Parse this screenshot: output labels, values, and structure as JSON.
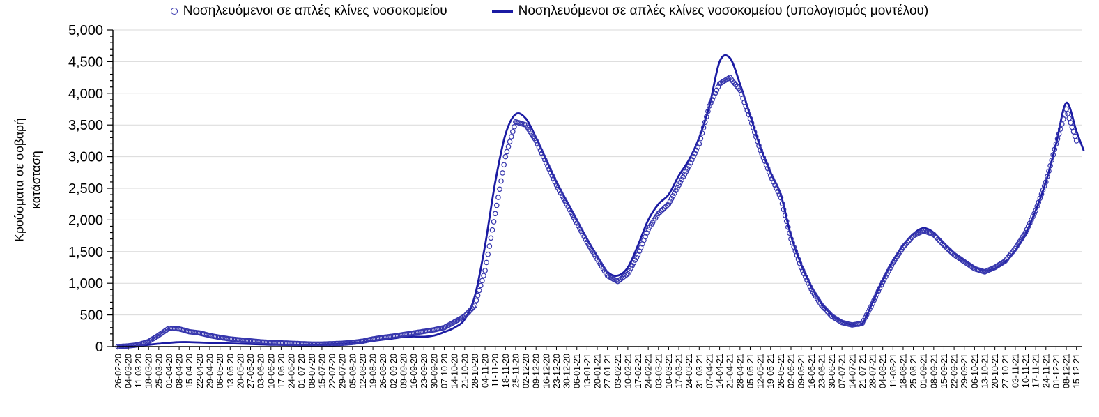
{
  "figure": {
    "colors": {
      "model_line": "#1B1BA3",
      "observed_marker": "#3636AD",
      "grid": "#D9D9D9",
      "axis": "#000000",
      "text": "#000000",
      "background": "#FFFFFF"
    },
    "y_axis": {
      "title": "Κρούσματα σε σοβαρή κατάσταση",
      "title_line1": "Κρούσματα σε σοβαρή",
      "title_line2": "κατάσταση",
      "min": 0,
      "max": 5000,
      "major_step": 500,
      "minor_step": 100,
      "tick_labels": [
        "0",
        "500",
        "1,000",
        "1,500",
        "2,000",
        "2,500",
        "3,000",
        "3,500",
        "4,000",
        "4,500",
        "5,000"
      ]
    }
  },
  "chart_data": {
    "type": "line+scatter",
    "title": "",
    "xlabel": "",
    "ylabel": "Κρούσματα σε σοβαρή κατάσταση",
    "ylim": [
      0,
      5000
    ],
    "grid": "horizontal",
    "legend_position": "top-center",
    "x": [
      "26-02-20",
      "04-03-20",
      "11-03-20",
      "18-03-20",
      "25-03-20",
      "01-04-20",
      "08-04-20",
      "15-04-20",
      "22-04-20",
      "29-04-20",
      "06-05-20",
      "13-05-20",
      "20-05-20",
      "27-05-20",
      "03-06-20",
      "10-06-20",
      "17-06-20",
      "24-06-20",
      "01-07-20",
      "08-07-20",
      "15-07-20",
      "22-07-20",
      "29-07-20",
      "05-08-20",
      "12-08-20",
      "19-08-20",
      "26-08-20",
      "02-09-20",
      "09-09-20",
      "16-09-20",
      "23-09-20",
      "30-09-20",
      "07-10-20",
      "14-10-20",
      "21-10-20",
      "28-10-20",
      "04-11-20",
      "11-11-20",
      "18-11-20",
      "25-11-20",
      "02-12-20",
      "09-12-20",
      "16-12-20",
      "23-12-20",
      "30-12-20",
      "06-01-21",
      "13-01-21",
      "20-01-21",
      "27-01-21",
      "03-02-21",
      "10-02-21",
      "17-02-21",
      "24-02-21",
      "03-03-21",
      "10-03-21",
      "17-03-21",
      "24-03-21",
      "31-03-21",
      "07-04-21",
      "14-04-21",
      "21-04-21",
      "28-04-21",
      "05-05-21",
      "12-05-21",
      "19-05-21",
      "26-05-21",
      "02-06-21",
      "09-06-21",
      "16-06-21",
      "23-06-21",
      "30-06-21",
      "07-07-21",
      "14-07-21",
      "21-07-21",
      "28-07-21",
      "04-08-21",
      "11-08-21",
      "18-08-21",
      "25-08-21",
      "01-09-21",
      "08-09-21",
      "15-09-21",
      "22-09-21",
      "29-09-21",
      "06-10-21",
      "13-10-21",
      "20-10-21",
      "27-10-21",
      "03-11-21",
      "10-11-21",
      "17-11-21",
      "24-11-21",
      "01-12-21",
      "08-12-21",
      "15-12-21"
    ],
    "series": [
      {
        "name": "Νοσηλευόμενοι σε απλές κλίνες νοσοκομείου",
        "type": "scatter",
        "marker": "open-circle",
        "color": "#3636AD",
        "values": [
          0,
          10,
          30,
          80,
          180,
          290,
          280,
          235,
          215,
          175,
          145,
          120,
          105,
          90,
          75,
          65,
          58,
          52,
          45,
          40,
          40,
          45,
          52,
          65,
          85,
          120,
          145,
          165,
          190,
          215,
          240,
          265,
          300,
          390,
          480,
          650,
          1200,
          2100,
          3000,
          3550,
          3500,
          3250,
          2900,
          2550,
          2250,
          1950,
          1650,
          1380,
          1120,
          1030,
          1150,
          1450,
          1850,
          2100,
          2250,
          2550,
          2850,
          3200,
          3800,
          4150,
          4250,
          4050,
          3600,
          3100,
          2700,
          2350,
          1700,
          1250,
          900,
          650,
          480,
          380,
          340,
          370,
          680,
          1020,
          1320,
          1570,
          1750,
          1830,
          1770,
          1600,
          1450,
          1340,
          1230,
          1180,
          1250,
          1350,
          1550,
          1800,
          2150,
          2600,
          3200,
          3750,
          3250
        ]
      },
      {
        "name": "Νοσηλευόμενοι σε απλές κλίνες νοσοκομείου (υπολογισμός μοντέλου)",
        "type": "line",
        "marker": "none",
        "color": "#1B1BA3",
        "values": [
          5,
          8,
          15,
          30,
          45,
          60,
          70,
          70,
          65,
          60,
          55,
          50,
          45,
          40,
          35,
          30,
          28,
          25,
          25,
          28,
          32,
          38,
          45,
          55,
          70,
          90,
          110,
          130,
          150,
          160,
          155,
          175,
          230,
          300,
          430,
          800,
          1600,
          2600,
          3350,
          3670,
          3600,
          3300,
          2950,
          2600,
          2300,
          2000,
          1700,
          1430,
          1180,
          1120,
          1250,
          1600,
          2000,
          2250,
          2400,
          2700,
          2950,
          3300,
          3800,
          4500,
          4560,
          4150,
          3650,
          3150,
          2750,
          2400,
          1750,
          1300,
          950,
          680,
          500,
          400,
          345,
          360,
          700,
          1050,
          1350,
          1600,
          1780,
          1870,
          1800,
          1630,
          1480,
          1370,
          1260,
          1200,
          1230,
          1330,
          1520,
          1780,
          2150,
          2600,
          3200,
          3850,
          3400
        ],
        "tail": {
          "x_offset_weeks": 0.7,
          "value": 3100
        }
      }
    ]
  }
}
